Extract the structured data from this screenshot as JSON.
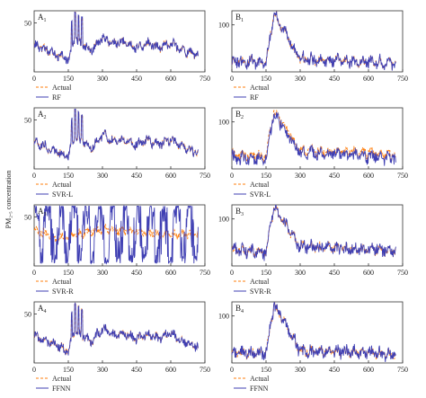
{
  "figure": {
    "ylabel": "PM₂.₅ concentration",
    "colors": {
      "actual": "#ff7f0e",
      "model": "#3f3fb3",
      "frame": "#333333"
    }
  },
  "chart_data": [
    {
      "type": "line",
      "panel": "A",
      "label_letter": "A",
      "label_sub": "1",
      "xlim": [
        0,
        750
      ],
      "ylim": [
        10,
        60
      ],
      "xticks": [
        0,
        150,
        300,
        450,
        600,
        750
      ],
      "yticks": [
        50
      ],
      "series": [
        {
          "name": "Actual",
          "style": "dashed"
        },
        {
          "name": "RF",
          "style": "solid"
        }
      ],
      "approx_profile": {
        "x_points": [
          0,
          100,
          150,
          180,
          200,
          230,
          250,
          300,
          350,
          400,
          450,
          500,
          550,
          600,
          650,
          700
        ],
        "actual_y": [
          32,
          24,
          20,
          38,
          33,
          30,
          27,
          38,
          33,
          34,
          30,
          33,
          30,
          34,
          28,
          24
        ],
        "spikes_x": [
          165,
          180,
          195,
          210
        ]
      }
    },
    {
      "type": "line",
      "panel": "B",
      "label_letter": "B",
      "label_sub": "1",
      "xlim": [
        0,
        750
      ],
      "ylim": [
        0,
        130
      ],
      "xticks": [
        0,
        150,
        300,
        450,
        600,
        750
      ],
      "yticks": [
        100
      ],
      "series": [
        {
          "name": "Actual",
          "style": "dashed"
        },
        {
          "name": "RF",
          "style": "solid"
        }
      ],
      "approx_profile": {
        "x_points": [
          0,
          150,
          185,
          300,
          450,
          600,
          700
        ],
        "actual_y": [
          22,
          20,
          125,
          26,
          24,
          22,
          18
        ],
        "spikes_x": [
          185
        ]
      }
    },
    {
      "type": "line",
      "panel": "A",
      "label_letter": "A",
      "label_sub": "2",
      "xlim": [
        0,
        750
      ],
      "ylim": [
        10,
        60
      ],
      "xticks": [
        0,
        150,
        300,
        450,
        600,
        750
      ],
      "yticks": [
        50
      ],
      "series": [
        {
          "name": "Actual",
          "style": "dashed"
        },
        {
          "name": "SVR-L",
          "style": "solid"
        }
      ],
      "approx_profile": {
        "x_points": [
          0,
          100,
          150,
          180,
          200,
          230,
          250,
          300,
          350,
          400,
          450,
          500,
          550,
          600,
          650,
          700
        ],
        "actual_y": [
          32,
          24,
          20,
          38,
          33,
          30,
          27,
          38,
          33,
          34,
          30,
          33,
          30,
          34,
          28,
          24
        ],
        "spikes_x": [
          165,
          180,
          195,
          210
        ]
      }
    },
    {
      "type": "line",
      "panel": "B",
      "label_letter": "B",
      "label_sub": "2",
      "xlim": [
        0,
        750
      ],
      "ylim": [
        0,
        130
      ],
      "xticks": [
        0,
        150,
        300,
        450,
        600,
        750
      ],
      "yticks": [
        100
      ],
      "series": [
        {
          "name": "Actual",
          "style": "dashed"
        },
        {
          "name": "SVR-L",
          "style": "solid"
        }
      ],
      "approx_profile": {
        "x_points": [
          0,
          150,
          185,
          300,
          450,
          600,
          700
        ],
        "actual_y": [
          30,
          28,
          125,
          38,
          36,
          34,
          30
        ],
        "spikes_x": [
          185
        ]
      }
    },
    {
      "type": "line",
      "panel": "A",
      "label_letter": "A",
      "label_sub": "3",
      "xlim": [
        0,
        750
      ],
      "ylim": [
        10,
        60
      ],
      "xticks": [
        0,
        150,
        300,
        450,
        600,
        750
      ],
      "yticks": [
        50
      ],
      "series": [
        {
          "name": "Actual",
          "style": "dashed"
        },
        {
          "name": "SVR-R",
          "style": "solid"
        }
      ],
      "approx_profile": {
        "x_points": [
          0,
          100,
          200,
          300,
          450,
          600,
          700
        ],
        "actual_y": [
          40,
          32,
          36,
          40,
          38,
          36,
          35
        ],
        "model_range": [
          12,
          62
        ]
      }
    },
    {
      "type": "line",
      "panel": "B",
      "label_letter": "B",
      "label_sub": "3",
      "xlim": [
        0,
        750
      ],
      "ylim": [
        0,
        130
      ],
      "xticks": [
        0,
        150,
        300,
        450,
        600,
        750
      ],
      "yticks": [
        100
      ],
      "series": [
        {
          "name": "Actual",
          "style": "dashed"
        },
        {
          "name": "SVR-R",
          "style": "solid"
        }
      ],
      "approx_profile": {
        "x_points": [
          0,
          150,
          185,
          300,
          450,
          600,
          700
        ],
        "actual_y": [
          35,
          30,
          125,
          40,
          38,
          36,
          32
        ],
        "spikes_x": [
          185
        ]
      }
    },
    {
      "type": "line",
      "panel": "A",
      "label_letter": "A",
      "label_sub": "4",
      "xlim": [
        0,
        750
      ],
      "ylim": [
        10,
        60
      ],
      "xticks": [
        0,
        150,
        300,
        450,
        600,
        750
      ],
      "yticks": [
        50
      ],
      "series": [
        {
          "name": "Actual",
          "style": "dashed"
        },
        {
          "name": "FFNN",
          "style": "solid"
        }
      ],
      "approx_profile": {
        "x_points": [
          0,
          100,
          150,
          180,
          200,
          230,
          250,
          300,
          350,
          400,
          450,
          500,
          550,
          600,
          650,
          700
        ],
        "actual_y": [
          32,
          24,
          20,
          38,
          33,
          30,
          27,
          38,
          33,
          34,
          30,
          33,
          30,
          34,
          28,
          24
        ],
        "spikes_x": [
          165,
          180,
          195,
          210
        ]
      }
    },
    {
      "type": "line",
      "panel": "B",
      "label_letter": "B",
      "label_sub": "4",
      "xlim": [
        0,
        750
      ],
      "ylim": [
        0,
        130
      ],
      "xticks": [
        0,
        150,
        300,
        450,
        600,
        750
      ],
      "yticks": [
        100
      ],
      "series": [
        {
          "name": "Actual",
          "style": "dashed"
        },
        {
          "name": "FFNN",
          "style": "solid"
        }
      ],
      "approx_profile": {
        "x_points": [
          0,
          150,
          185,
          300,
          450,
          600,
          700
        ],
        "actual_y": [
          22,
          20,
          125,
          26,
          24,
          22,
          18
        ],
        "spikes_x": [
          185
        ]
      }
    }
  ]
}
